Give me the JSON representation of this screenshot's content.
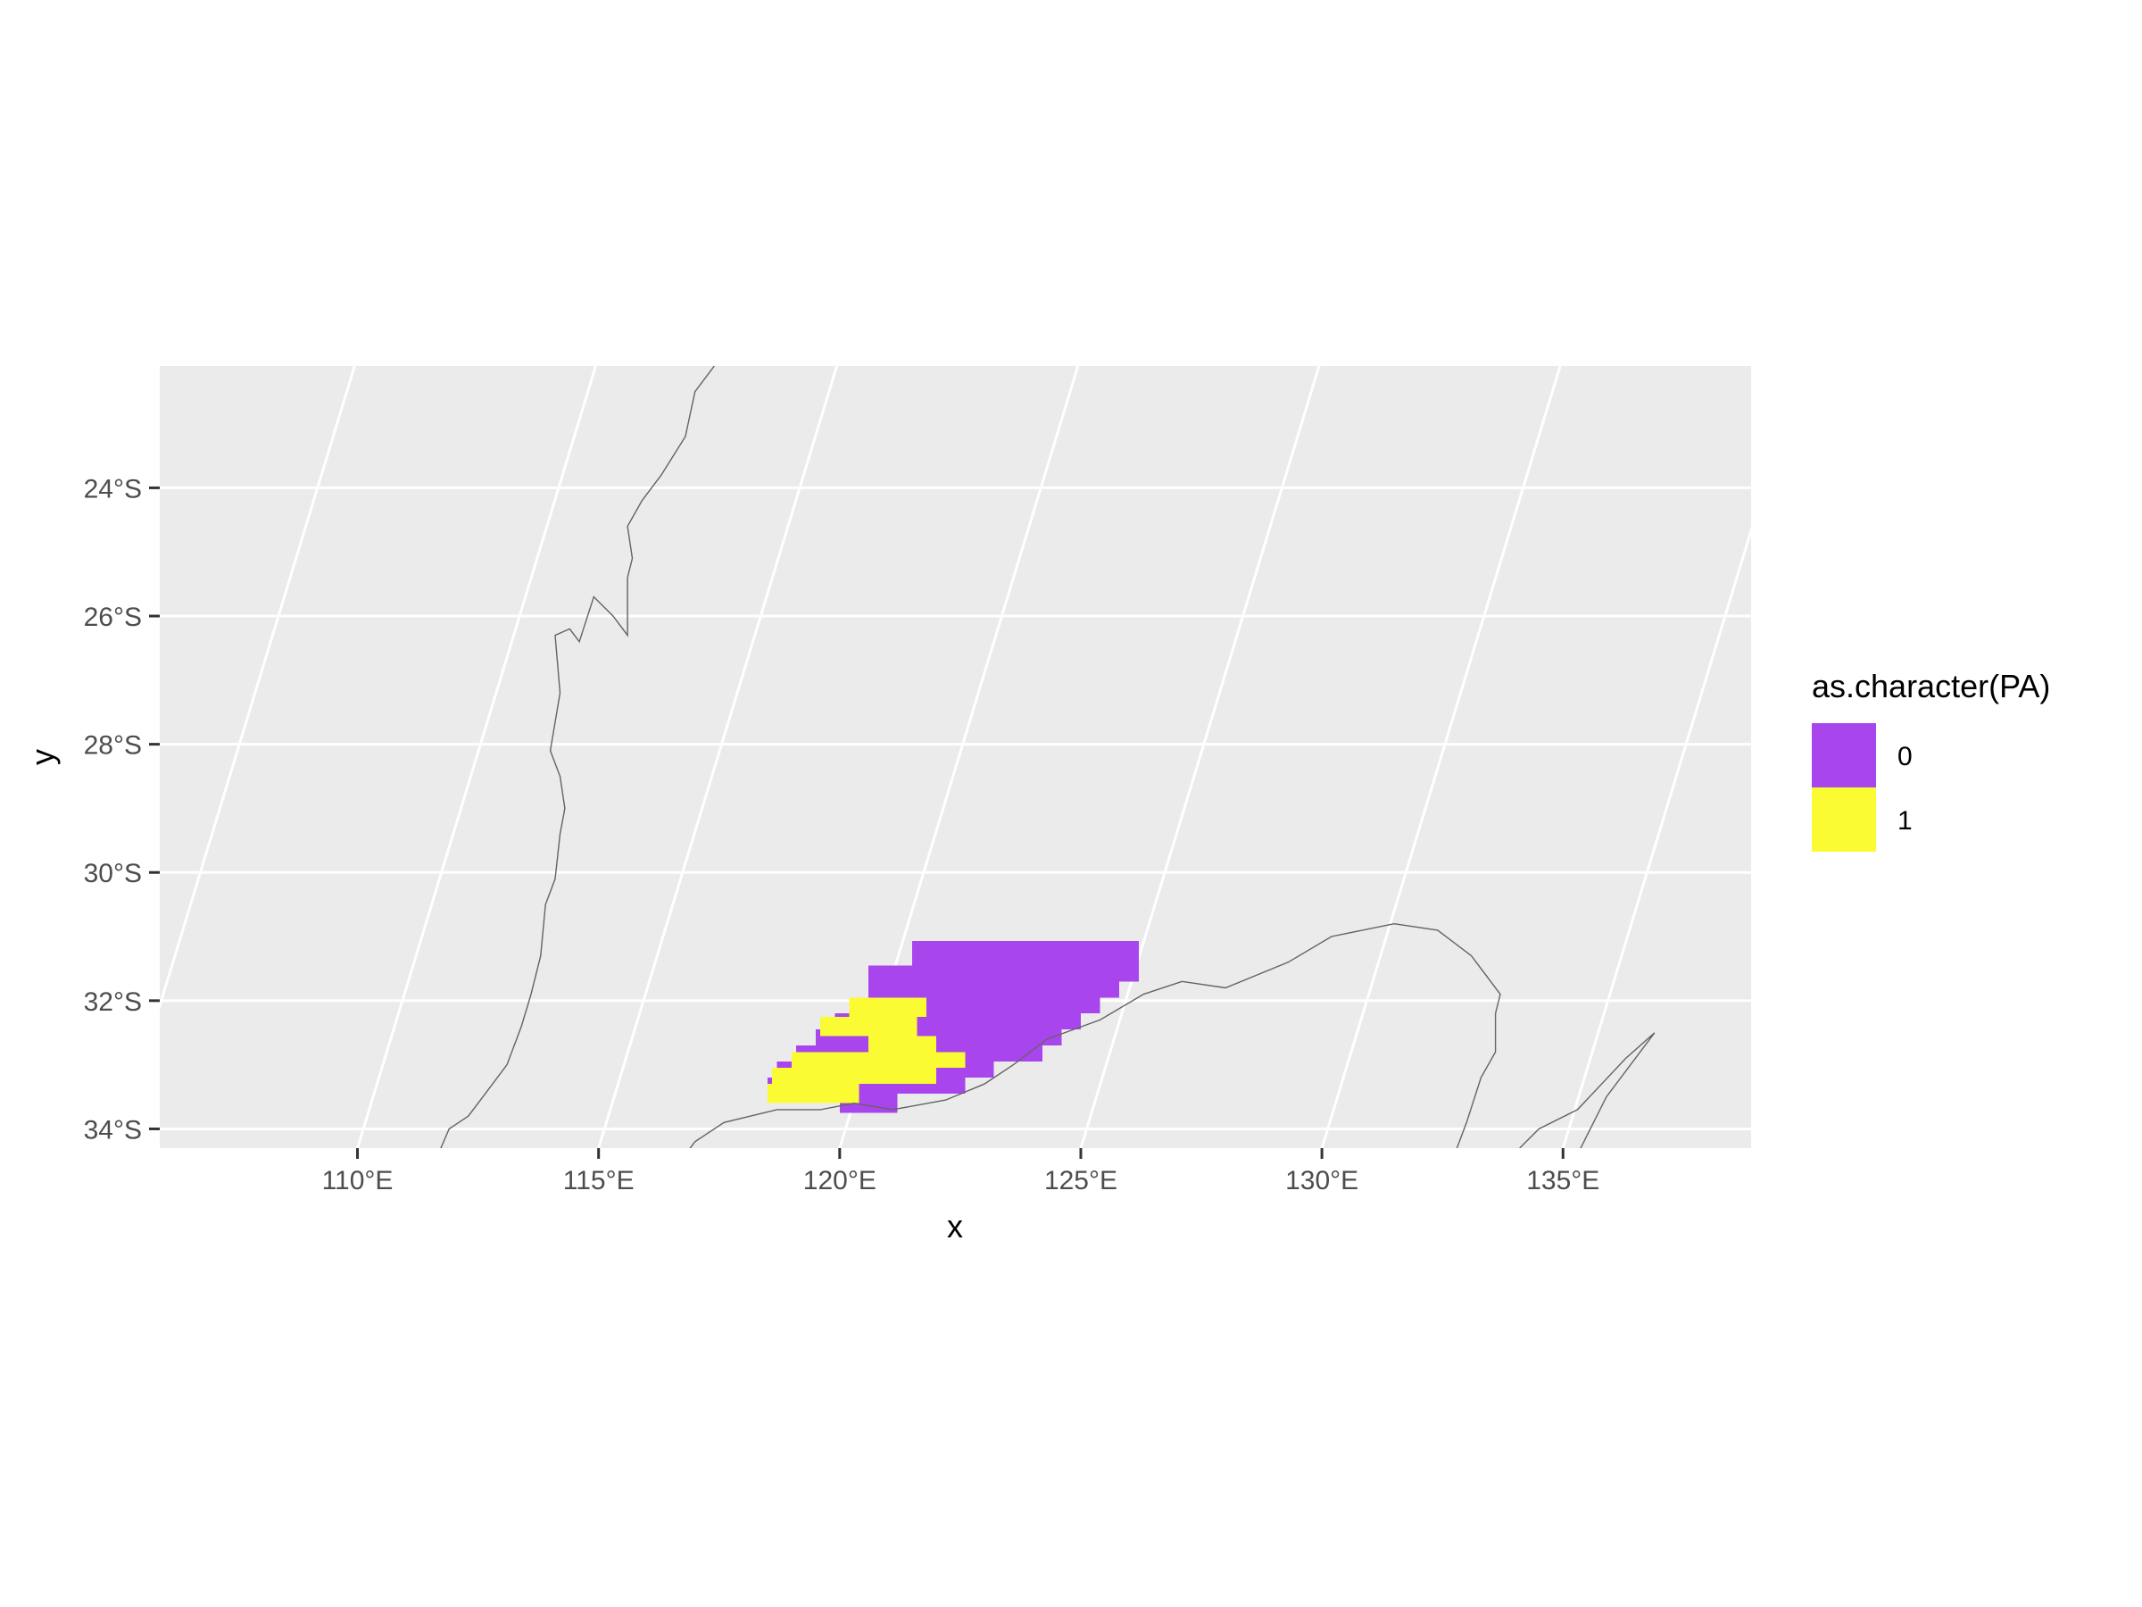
{
  "chart_data": {
    "type": "heatmap",
    "title": "",
    "xlabel": "x",
    "ylabel": "y",
    "x_ticks": [
      "110°E",
      "115°E",
      "120°E",
      "125°E",
      "130°E",
      "135°E"
    ],
    "y_ticks": [
      "24°S",
      "26°S",
      "28°S",
      "30°S",
      "32°S",
      "34°S"
    ],
    "x_tick_values": [
      110,
      115,
      120,
      125,
      130,
      135
    ],
    "y_tick_values": [
      -24,
      -26,
      -28,
      -30,
      -32,
      -34
    ],
    "xlim": [
      105.9,
      138.9
    ],
    "ylim": [
      -34.3,
      -22.1
    ],
    "grid": true,
    "legend_position": "right",
    "legend": {
      "title": "as.character(PA)",
      "entries": [
        {
          "label": "0",
          "color": "#A945ED"
        },
        {
          "label": "1",
          "color": "#FBFB33"
        }
      ]
    },
    "colors": {
      "panel": "#EBEBEB",
      "grid": "#FFFFFF",
      "coastline": "#636363",
      "absence": "#A945ED",
      "presence": "#FBFB33"
    },
    "raster_cells_note_units": "cell bounds given in degrees lon/lat",
    "raster": {
      "absence": [
        [
          121.5,
          124.0,
          -31.45,
          -31.07
        ],
        [
          124.0,
          126.2,
          -31.7,
          -31.07
        ],
        [
          120.6,
          125.8,
          -31.95,
          -31.45
        ],
        [
          120.2,
          125.4,
          -32.2,
          -31.95
        ],
        [
          119.9,
          125.0,
          -32.45,
          -32.2
        ],
        [
          119.5,
          124.6,
          -32.7,
          -32.45
        ],
        [
          119.1,
          124.2,
          -32.95,
          -32.7
        ],
        [
          118.7,
          123.2,
          -33.2,
          -32.95
        ],
        [
          118.5,
          122.6,
          -33.45,
          -33.2
        ],
        [
          120.0,
          121.2,
          -33.75,
          -33.45
        ]
      ],
      "presence": [
        [
          120.2,
          121.8,
          -32.25,
          -31.95
        ],
        [
          119.6,
          121.6,
          -32.55,
          -32.25
        ],
        [
          120.6,
          122.0,
          -32.8,
          -32.55
        ],
        [
          119.0,
          122.6,
          -33.05,
          -32.8
        ],
        [
          118.6,
          122.0,
          -33.3,
          -33.05
        ],
        [
          118.5,
          120.4,
          -33.6,
          -33.3
        ],
        [
          121.0,
          121.7,
          -33.2,
          -32.95
        ]
      ]
    },
    "coastlines": [
      [
        [
          117.4,
          -22.1
        ],
        [
          117.0,
          -22.5
        ],
        [
          116.8,
          -23.2
        ],
        [
          116.3,
          -23.8
        ],
        [
          115.9,
          -24.2
        ],
        [
          115.6,
          -24.6
        ],
        [
          115.7,
          -25.1
        ],
        [
          115.6,
          -25.4
        ],
        [
          115.6,
          -26.3
        ],
        [
          115.3,
          -26.0
        ],
        [
          114.9,
          -25.7
        ],
        [
          114.6,
          -26.4
        ],
        [
          114.4,
          -26.2
        ],
        [
          114.1,
          -26.3
        ],
        [
          114.2,
          -27.2
        ],
        [
          114.0,
          -28.1
        ],
        [
          114.2,
          -28.5
        ],
        [
          114.3,
          -29.0
        ],
        [
          114.2,
          -29.4
        ],
        [
          114.1,
          -30.1
        ],
        [
          113.9,
          -30.5
        ],
        [
          113.8,
          -31.3
        ],
        [
          113.6,
          -31.9
        ],
        [
          113.4,
          -32.4
        ],
        [
          113.1,
          -33.0
        ],
        [
          112.7,
          -33.4
        ],
        [
          112.3,
          -33.8
        ],
        [
          111.9,
          -34.0
        ],
        [
          111.5,
          -34.7
        ]
      ],
      [
        [
          116.5,
          -34.7
        ],
        [
          117.0,
          -34.2
        ],
        [
          117.6,
          -33.9
        ],
        [
          118.7,
          -33.7
        ],
        [
          119.6,
          -33.7
        ],
        [
          120.3,
          -33.6
        ],
        [
          121.1,
          -33.7
        ],
        [
          122.2,
          -33.55
        ],
        [
          123.0,
          -33.3
        ],
        [
          123.6,
          -33.0
        ],
        [
          124.3,
          -32.6
        ],
        [
          125.4,
          -32.3
        ],
        [
          126.3,
          -31.9
        ],
        [
          127.1,
          -31.7
        ],
        [
          128.0,
          -31.8
        ],
        [
          129.3,
          -31.4
        ],
        [
          130.2,
          -31.0
        ],
        [
          131.5,
          -30.8
        ],
        [
          132.4,
          -30.9
        ],
        [
          133.1,
          -31.3
        ],
        [
          133.7,
          -31.9
        ],
        [
          133.6,
          -32.2
        ],
        [
          133.6,
          -32.8
        ],
        [
          133.3,
          -33.2
        ],
        [
          133.0,
          -33.9
        ],
        [
          132.8,
          -34.3
        ]
      ],
      [
        [
          134.1,
          -34.3
        ],
        [
          134.5,
          -34.0
        ],
        [
          135.3,
          -33.7
        ],
        [
          136.3,
          -32.9
        ],
        [
          136.9,
          -32.5
        ],
        [
          136.6,
          -32.8
        ],
        [
          135.9,
          -33.5
        ],
        [
          135.5,
          -34.1
        ],
        [
          135.3,
          -34.4
        ]
      ]
    ]
  }
}
